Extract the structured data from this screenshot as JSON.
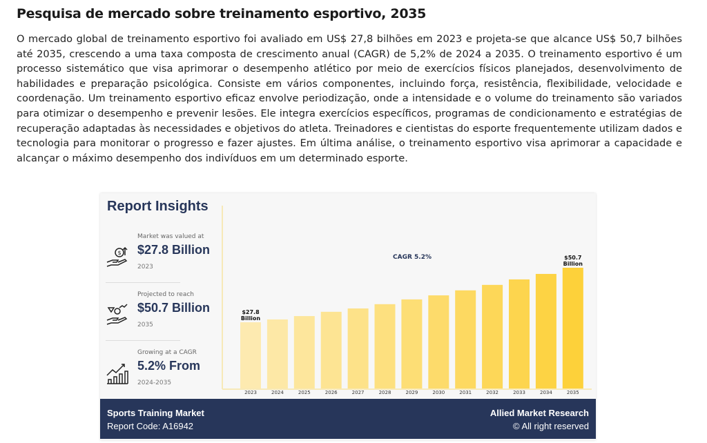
{
  "title": "Pesquisa de mercado sobre treinamento esportivo, 2035",
  "paragraph": "O mercado global de treinamento esportivo foi avaliado em US$ 27,8 bilhões em 2023 e projeta-se que alcance US$ 50,7 bilhões até 2035, crescendo a uma taxa composta de crescimento anual (CAGR) de 5,2% de 2024 a 2035. O treinamento esportivo é um processo sistemático que visa aprimorar o desempenho atlético por meio de exercícios físicos planejados, desenvolvimento de habilidades e preparação psicológica. Consiste em vários componentes, incluindo força, resistência, flexibilidade, velocidade e coordenação. Um treinamento esportivo eficaz envolve periodização, onde a intensidade e o volume do treinamento são variados para otimizar o desempenho e prevenir lesões. Ele integra exercícios específicos, programas de condicionamento e estratégias de recuperação adaptadas às necessidades e objetivos do atleta. Treinadores e cientistas do esporte frequentemente utilizam dados e tecnologia para monitorar o progresso e fazer ajustes. Em última análise, o treinamento esportivo visa aprimorar a capacidade e alcançar o máximo desempenho dos indivíduos em um determinado esporte.",
  "card": {
    "heading": "Report Insights",
    "stats": [
      {
        "label": "Market was valued at",
        "value": "$27.8 Billion",
        "year": "2023",
        "icon": "money-hand-icon"
      },
      {
        "label": "Projected to reach",
        "value": "$50.7 Billion",
        "year": "2035",
        "icon": "diamond-hand-icon"
      },
      {
        "label": "Growing at a CAGR",
        "value": "5.2% From",
        "year": "2024-2035",
        "icon": "growth-chart-icon"
      }
    ],
    "footer": {
      "left_title": "Sports Training Market",
      "left_code": "Report Code: A16942",
      "right_title": "Allied Market Research",
      "right_rights": "© All right reserved"
    }
  },
  "chart_data": {
    "type": "bar",
    "title": "CAGR 5.2%",
    "categories": [
      "2023",
      "2024",
      "2025",
      "2026",
      "2027",
      "2028",
      "2029",
      "2030",
      "2031",
      "2032",
      "2033",
      "2034",
      "2035"
    ],
    "values": [
      27.8,
      29.0,
      30.4,
      32.2,
      33.6,
      35.4,
      37.4,
      39.1,
      41.2,
      43.5,
      45.8,
      48.1,
      50.7
    ],
    "data_labels": {
      "2023": [
        "$27.8",
        "Billion"
      ],
      "2035": [
        "$50.7",
        "Billion"
      ]
    },
    "unit": "USD Billion",
    "colors": {
      "start": "#fdeab0",
      "end": "#fdd13a",
      "footer": "#27365a"
    },
    "grid": false
  }
}
